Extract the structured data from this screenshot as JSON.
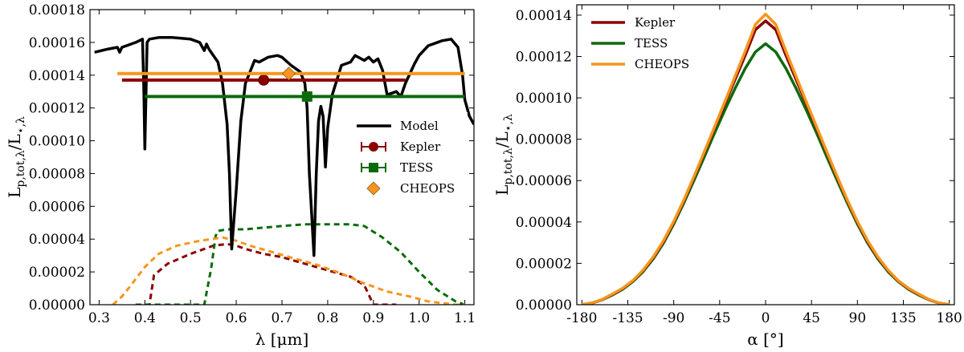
{
  "colors": {
    "kepler": "#8b0000",
    "tess": "#0b6b0b",
    "cheops": "#f5961e",
    "model": "#000000"
  },
  "chart_data": [
    {
      "type": "line",
      "xlabel": "λ [μm]",
      "ylabel": "L_{p,tot,λ}/L_{⋆,λ}",
      "ylabel_main": "L",
      "ylabel_sub": "p,tot,λ",
      "ylabel_slash": "/L",
      "ylabel_sub2": "⋆,λ",
      "xlabel_text": "λ [μm]",
      "xlim": [
        0.28,
        1.12
      ],
      "ylim": [
        0,
        0.00018
      ],
      "xticks": [
        0.3,
        0.4,
        0.5,
        0.6,
        0.7,
        0.8,
        0.9,
        1.0,
        1.1
      ],
      "xtick_labels": [
        "0.3",
        "0.4",
        "0.5",
        "0.6",
        "0.7",
        "0.8",
        "0.9",
        "1.0",
        "1.1"
      ],
      "yticks": [
        0,
        2e-05,
        4e-05,
        6e-05,
        8e-05,
        0.0001,
        0.00012,
        0.00014,
        0.00016,
        0.00018
      ],
      "ytick_labels": [
        "0.00000",
        "0.00002",
        "0.00004",
        "0.00006",
        "0.00008",
        "0.00010",
        "0.00012",
        "0.00014",
        "0.00016",
        "0.00018"
      ],
      "legend": {
        "position": "center-right",
        "entries": [
          "Model",
          "Kepler",
          "TESS",
          "CHEOPS"
        ]
      },
      "model": {
        "name": "Model",
        "x": [
          0.29,
          0.32,
          0.34,
          0.345,
          0.35,
          0.36,
          0.38,
          0.395,
          0.398,
          0.4,
          0.405,
          0.41,
          0.43,
          0.46,
          0.5,
          0.52,
          0.53,
          0.535,
          0.54,
          0.55,
          0.56,
          0.57,
          0.58,
          0.585,
          0.59,
          0.6,
          0.61,
          0.62,
          0.64,
          0.65,
          0.67,
          0.69,
          0.7,
          0.72,
          0.74,
          0.75,
          0.755,
          0.76,
          0.765,
          0.77,
          0.775,
          0.78,
          0.785,
          0.79,
          0.795,
          0.8,
          0.81,
          0.83,
          0.85,
          0.86,
          0.88,
          0.89,
          0.9,
          0.91,
          0.92,
          0.93,
          0.95,
          0.96,
          0.97,
          0.99,
          1.0,
          1.02,
          1.05,
          1.07,
          1.085,
          1.095,
          1.1,
          1.11,
          1.12
        ],
        "y": [
          0.000154,
          0.000156,
          0.000157,
          0.000154,
          0.000157,
          0.000158,
          0.00016,
          0.000162,
          0.00013,
          9.5e-05,
          0.00016,
          0.000162,
          0.000163,
          0.000163,
          0.000162,
          0.00016,
          0.000155,
          0.000159,
          0.000156,
          0.000152,
          0.000148,
          0.000135,
          0.00011,
          8e-05,
          3.4e-05,
          7e-05,
          0.000112,
          0.000135,
          0.000149,
          0.000148,
          0.000151,
          0.000152,
          0.000151,
          0.000146,
          0.000142,
          0.000135,
          0.00012,
          8e-05,
          5.5e-05,
          3e-05,
          8e-05,
          0.000112,
          0.000121,
          0.000115,
          8.4e-05,
          0.000108,
          0.000128,
          0.000146,
          0.000148,
          0.000152,
          0.000149,
          0.000151,
          0.000148,
          0.00015,
          0.000143,
          0.000128,
          0.00013,
          0.000127,
          0.000135,
          0.000147,
          0.000152,
          0.000158,
          0.000161,
          0.000162,
          0.000157,
          0.00014,
          0.000125,
          0.000115,
          0.00011
        ]
      },
      "bands": [
        {
          "name": "Kepler",
          "value": 0.000137,
          "x_center": 0.66,
          "xmin": 0.35,
          "xmax": 0.97,
          "marker": "circle",
          "response_x": [
            0.38,
            0.41,
            0.42,
            0.45,
            0.5,
            0.55,
            0.58,
            0.6,
            0.62,
            0.66,
            0.7,
            0.75,
            0.8,
            0.85,
            0.88,
            0.89,
            0.9,
            0.91,
            0.95
          ],
          "response_y": [
            0.0,
            0.0,
            1.8e-05,
            2.5e-05,
            3.1e-05,
            3.6e-05,
            3.7e-05,
            3.6e-05,
            3.4e-05,
            3.1e-05,
            2.9e-05,
            2.5e-05,
            2.1e-05,
            1.7e-05,
            1.2e-05,
            6e-06,
            0.0,
            0.0,
            0.0
          ]
        },
        {
          "name": "TESS",
          "value": 0.000127,
          "x_center": 0.755,
          "xmin": 0.4,
          "xmax": 1.1,
          "marker": "square",
          "response_x": [
            0.38,
            0.45,
            0.5,
            0.53,
            0.545,
            0.555,
            0.56,
            0.58,
            0.62,
            0.66,
            0.7,
            0.75,
            0.8,
            0.85,
            0.88,
            0.92,
            0.96,
            1.0,
            1.04,
            1.08,
            1.1
          ],
          "response_y": [
            0.0,
            0.0,
            0.0,
            0.0,
            2.2e-05,
            4.2e-05,
            4.5e-05,
            4.6e-05,
            4.6e-05,
            4.7e-05,
            4.8e-05,
            4.9e-05,
            4.9e-05,
            4.9e-05,
            4.8e-05,
            4.1e-05,
            3.2e-05,
            2e-05,
            9e-06,
            2e-06,
            0.0
          ]
        },
        {
          "name": "CHEOPS",
          "value": 0.000141,
          "x_center": 0.715,
          "xmin": 0.34,
          "xmax": 1.1,
          "marker": "diamond",
          "response_x": [
            0.33,
            0.35,
            0.37,
            0.4,
            0.43,
            0.47,
            0.52,
            0.57,
            0.6,
            0.63,
            0.68,
            0.73,
            0.78,
            0.83,
            0.88,
            0.93,
            0.98,
            1.02,
            1.05,
            1.08,
            1.1
          ],
          "response_y": [
            0.0,
            5e-06,
            1.2e-05,
            2.3e-05,
            3.1e-05,
            3.6e-05,
            3.9e-05,
            4.1e-05,
            3.9e-05,
            3.6e-05,
            3.2e-05,
            2.8e-05,
            2.4e-05,
            1.9e-05,
            1.3e-05,
            8e-06,
            5e-06,
            2e-06,
            1e-06,
            0.0,
            0.0
          ]
        }
      ]
    },
    {
      "type": "line",
      "xlabel": "α [°]",
      "xlabel_text": "α [°]",
      "ylabel_main": "L",
      "ylabel_sub": "p,tot,λ",
      "ylabel_slash": "/L",
      "ylabel_sub2": "⋆,λ",
      "xlim": [
        -185,
        185
      ],
      "ylim": [
        0,
        0.000145
      ],
      "xticks": [
        -180,
        -135,
        -90,
        -45,
        0,
        45,
        90,
        135,
        180
      ],
      "xtick_labels": [
        "-180",
        "-135",
        "-90",
        "-45",
        "0",
        "45",
        "90",
        "135",
        "180"
      ],
      "yticks": [
        0,
        2e-05,
        4e-05,
        6e-05,
        8e-05,
        0.0001,
        0.00012,
        0.00014
      ],
      "ytick_labels": [
        "0.00000",
        "0.00002",
        "0.00004",
        "0.00006",
        "0.00008",
        "0.00010",
        "0.00012",
        "0.00014"
      ],
      "legend": {
        "position": "top-left",
        "entries": [
          "Kepler",
          "TESS",
          "CHEOPS"
        ]
      },
      "x": [
        -180,
        -170,
        -160,
        -150,
        -140,
        -130,
        -120,
        -110,
        -100,
        -90,
        -80,
        -70,
        -60,
        -50,
        -40,
        -30,
        -20,
        -10,
        0,
        10,
        20,
        30,
        40,
        50,
        60,
        70,
        80,
        90,
        100,
        110,
        120,
        130,
        140,
        150,
        160,
        170,
        180
      ],
      "series": [
        {
          "name": "Kepler",
          "values": [
            0.0,
            8e-07,
            2.5e-06,
            5e-06,
            7.8e-06,
            1.15e-05,
            1.65e-05,
            2.28e-05,
            3.05e-05,
            3.98e-05,
            5.03e-05,
            6.17e-05,
            7.35e-05,
            8.53e-05,
            9.7e-05,
            0.0001088,
            0.0001205,
            0.000133,
            0.0001372,
            0.000133,
            0.0001205,
            0.0001088,
            9.7e-05,
            8.53e-05,
            7.35e-05,
            6.17e-05,
            5.03e-05,
            3.98e-05,
            3.05e-05,
            2.28e-05,
            1.65e-05,
            1.15e-05,
            7.8e-06,
            5e-06,
            2.5e-06,
            8e-07,
            0.0
          ]
        },
        {
          "name": "TESS",
          "values": [
            0.0,
            8e-07,
            2.4e-06,
            4.7e-06,
            7.5e-06,
            1.12e-05,
            1.6e-05,
            2.22e-05,
            2.98e-05,
            3.9e-05,
            4.93e-05,
            6.03e-05,
            7.15e-05,
            8.3e-05,
            9.4e-05,
            0.0001045,
            0.0001142,
            0.0001222,
            0.0001262,
            0.0001222,
            0.0001142,
            0.0001045,
            9.4e-05,
            8.3e-05,
            7.15e-05,
            6.03e-05,
            4.93e-05,
            3.9e-05,
            2.98e-05,
            2.22e-05,
            1.6e-05,
            1.12e-05,
            7.5e-06,
            4.7e-06,
            2.4e-06,
            8e-07,
            0.0
          ]
        },
        {
          "name": "CHEOPS",
          "values": [
            0.0,
            9e-07,
            2.6e-06,
            5.2e-06,
            8e-06,
            1.17e-05,
            1.68e-05,
            2.32e-05,
            3.1e-05,
            4.03e-05,
            5.08e-05,
            6.22e-05,
            7.4e-05,
            8.6e-05,
            9.8e-05,
            0.0001103,
            0.0001225,
            0.0001355,
            0.0001405,
            0.0001355,
            0.0001225,
            0.0001103,
            9.8e-05,
            8.6e-05,
            7.4e-05,
            6.22e-05,
            5.08e-05,
            4.03e-05,
            3.1e-05,
            2.32e-05,
            1.68e-05,
            1.17e-05,
            8e-06,
            5.2e-06,
            2.6e-06,
            9e-07,
            0.0
          ]
        }
      ]
    }
  ]
}
